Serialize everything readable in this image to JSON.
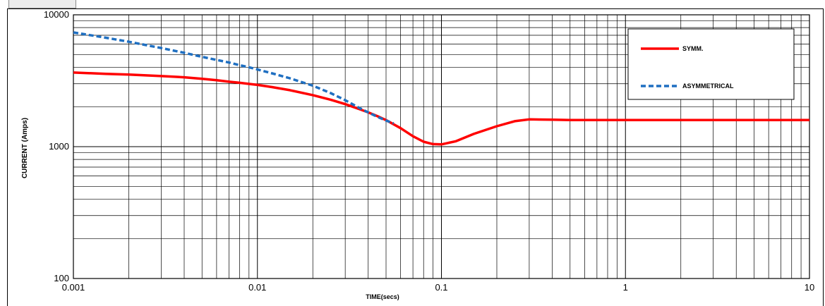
{
  "chart_data": {
    "type": "line",
    "title": "",
    "xlabel": "TIME(secs)",
    "ylabel": "CURRENT  (Amps)",
    "xscale": "log",
    "yscale": "log",
    "xlim": [
      0.001,
      10
    ],
    "ylim": [
      100,
      10000
    ],
    "grid": true,
    "legend_position": "top-right",
    "x_ticks": [
      {
        "value": 0.001,
        "label": "0.001"
      },
      {
        "value": 0.01,
        "label": "0.01"
      },
      {
        "value": 0.1,
        "label": "0.1"
      },
      {
        "value": 1,
        "label": "1"
      },
      {
        "value": 10,
        "label": "10"
      }
    ],
    "y_ticks": [
      {
        "value": 100,
        "label": "100"
      },
      {
        "value": 1000,
        "label": "1000"
      },
      {
        "value": 10000,
        "label": "10000"
      }
    ],
    "series": [
      {
        "name": "SYMM.",
        "color": "#ff0000",
        "style": "solid",
        "points": [
          [
            0.001,
            3650
          ],
          [
            0.0015,
            3570
          ],
          [
            0.002,
            3520
          ],
          [
            0.003,
            3430
          ],
          [
            0.004,
            3360
          ],
          [
            0.005,
            3270
          ],
          [
            0.006,
            3190
          ],
          [
            0.007,
            3110
          ],
          [
            0.008,
            3050
          ],
          [
            0.009,
            2990
          ],
          [
            0.01,
            2940
          ],
          [
            0.012,
            2830
          ],
          [
            0.015,
            2680
          ],
          [
            0.02,
            2460
          ],
          [
            0.025,
            2270
          ],
          [
            0.03,
            2100
          ],
          [
            0.035,
            1950
          ],
          [
            0.04,
            1820
          ],
          [
            0.045,
            1700
          ],
          [
            0.05,
            1590
          ],
          [
            0.06,
            1380
          ],
          [
            0.07,
            1200
          ],
          [
            0.08,
            1090
          ],
          [
            0.09,
            1045
          ],
          [
            0.1,
            1040
          ],
          [
            0.12,
            1100
          ],
          [
            0.15,
            1250
          ],
          [
            0.2,
            1430
          ],
          [
            0.25,
            1560
          ],
          [
            0.3,
            1610
          ],
          [
            0.4,
            1600
          ],
          [
            0.5,
            1590
          ],
          [
            1,
            1590
          ],
          [
            2,
            1590
          ],
          [
            5,
            1590
          ],
          [
            10,
            1590
          ]
        ]
      },
      {
        "name": "ASYMMETRICAL",
        "color": "#1f6fc1",
        "style": "dashed",
        "points": [
          [
            0.001,
            7350
          ],
          [
            0.0015,
            6700
          ],
          [
            0.002,
            6250
          ],
          [
            0.003,
            5600
          ],
          [
            0.004,
            5150
          ],
          [
            0.005,
            4800
          ],
          [
            0.006,
            4550
          ],
          [
            0.007,
            4350
          ],
          [
            0.008,
            4150
          ],
          [
            0.009,
            4000
          ],
          [
            0.01,
            3850
          ],
          [
            0.012,
            3600
          ],
          [
            0.015,
            3300
          ],
          [
            0.02,
            2900
          ],
          [
            0.025,
            2550
          ],
          [
            0.03,
            2250
          ],
          [
            0.035,
            2000
          ],
          [
            0.04,
            1820
          ],
          [
            0.045,
            1680
          ],
          [
            0.05,
            1580
          ],
          [
            0.055,
            1500
          ]
        ]
      }
    ]
  }
}
